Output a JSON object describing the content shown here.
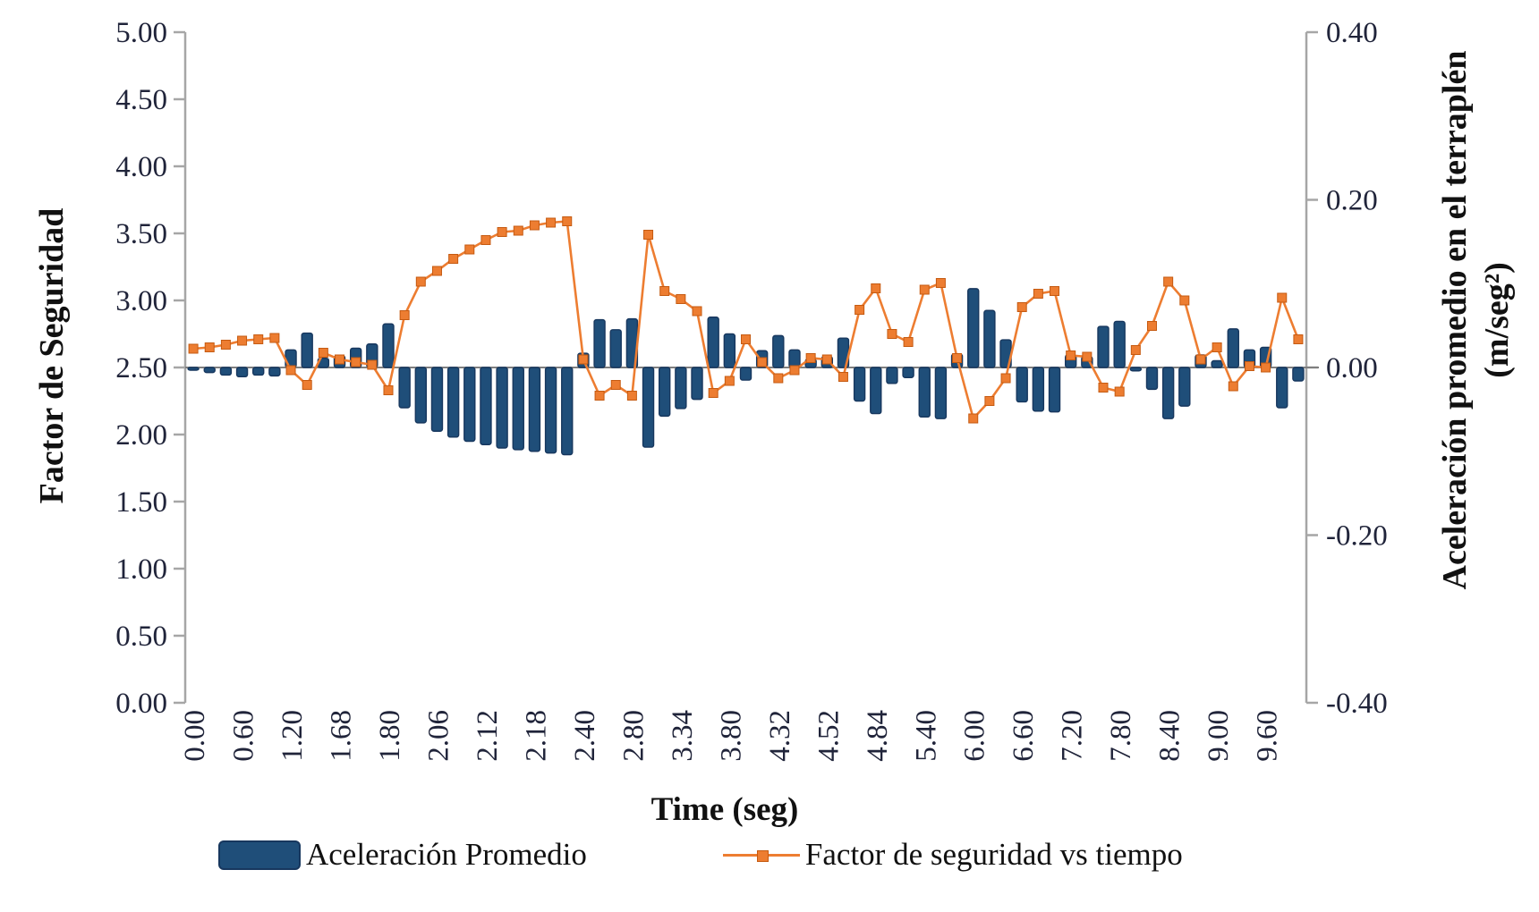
{
  "chart_data": {
    "type": "combo",
    "x_axis_title": "Time (seg)",
    "x_tick_labels": [
      "0.00",
      "0.60",
      "1.20",
      "1.68",
      "1.80",
      "2.06",
      "2.12",
      "2.18",
      "2.40",
      "2.80",
      "3.34",
      "3.80",
      "4.32",
      "4.52",
      "4.84",
      "5.40",
      "6.00",
      "6.60",
      "7.20",
      "7.80",
      "8.40",
      "9.00",
      "9.60"
    ],
    "x_tick_every": 3,
    "n_points": 69,
    "grid": "off",
    "legend_position": "bottom",
    "left_axis": {
      "title": "Factor de Seguridad",
      "min": 0,
      "max": 5,
      "step": 0.5,
      "tick_labels": [
        "0.00",
        "0.50",
        "1.00",
        "1.50",
        "2.00",
        "2.50",
        "3.00",
        "3.50",
        "4.00",
        "4.50",
        "5.00"
      ]
    },
    "right_axis": {
      "title_line1": "Aceleración promedio en el terraplén",
      "title_line2": "(m/seg²)",
      "min": -0.4,
      "max": 0.4,
      "step": 0.2,
      "tick_labels": [
        "-0.40",
        "-0.20",
        "0.00",
        "0.20",
        "0.40"
      ]
    },
    "baseline_value_left": 2.5,
    "baseline_color": "#7F7F7F",
    "axis_color": "#A6A6A6",
    "tick_text_color": "#20243A",
    "series": [
      {
        "name": "Aceleración Promedio",
        "type": "bar",
        "axis": "right",
        "color": "#1F4E79",
        "edge_color": "#17375E",
        "values": [
          -0.003,
          -0.006,
          -0.009,
          -0.011,
          -0.009,
          -0.01,
          0.021,
          0.041,
          0.011,
          0.014,
          0.023,
          0.028,
          0.052,
          -0.048,
          -0.066,
          -0.076,
          -0.083,
          -0.088,
          -0.092,
          -0.096,
          -0.098,
          -0.1,
          -0.102,
          -0.104,
          0.017,
          0.057,
          0.045,
          0.058,
          -0.095,
          -0.058,
          -0.049,
          -0.038,
          0.06,
          0.04,
          -0.015,
          0.02,
          0.038,
          0.021,
          0.01,
          0.013,
          0.035,
          -0.04,
          -0.055,
          -0.019,
          -0.012,
          -0.059,
          -0.061,
          0.016,
          0.094,
          0.068,
          0.033,
          -0.041,
          -0.052,
          -0.053,
          0.015,
          0.013,
          0.049,
          0.055,
          -0.004,
          -0.026,
          -0.061,
          -0.046,
          0.015,
          0.008,
          0.046,
          0.021,
          0.024,
          -0.048,
          -0.016
        ]
      },
      {
        "name": "Factor de seguridad vs tiempo",
        "type": "line",
        "axis": "left",
        "color": "#ED7D31",
        "marker": "square",
        "marker_edge_color": "#C55A11",
        "values": [
          2.64,
          2.65,
          2.67,
          2.7,
          2.71,
          2.72,
          2.48,
          2.37,
          2.61,
          2.56,
          2.54,
          2.52,
          2.33,
          2.89,
          3.14,
          3.22,
          3.31,
          3.38,
          3.45,
          3.51,
          3.52,
          3.56,
          3.58,
          3.59,
          2.56,
          2.29,
          2.37,
          2.29,
          3.49,
          3.07,
          3.01,
          2.92,
          2.31,
          2.4,
          2.71,
          2.54,
          2.42,
          2.48,
          2.57,
          2.56,
          2.43,
          2.93,
          3.09,
          2.75,
          2.69,
          3.08,
          3.13,
          2.57,
          2.12,
          2.25,
          2.42,
          2.95,
          3.05,
          3.07,
          2.59,
          2.58,
          2.35,
          2.32,
          2.63,
          2.81,
          3.14,
          3.0,
          2.56,
          2.65,
          2.36,
          2.51,
          2.5,
          3.02,
          2.71
        ]
      }
    ]
  }
}
